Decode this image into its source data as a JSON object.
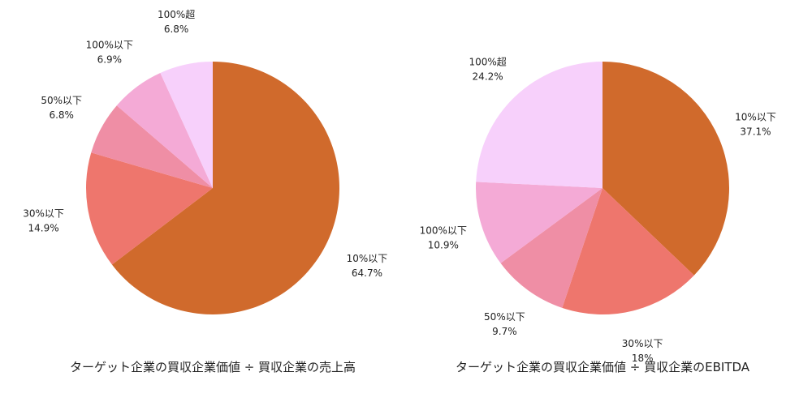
{
  "chart_data": [
    {
      "type": "pie",
      "title": "ターゲット企業の買収企業価値 ÷ 買収企業の売上高",
      "categories": [
        "10%以下",
        "30%以下",
        "50%以下",
        "100%以下",
        "100%超"
      ],
      "values": [
        64.7,
        14.9,
        6.8,
        6.9,
        6.8
      ],
      "value_labels": [
        "64.7%",
        "14.9%",
        "6.8%",
        "6.9%",
        "6.8%"
      ],
      "colors": [
        "#d06a2c",
        "#ee766d",
        "#ef8ea5",
        "#f4aad6",
        "#f7d0fb"
      ],
      "start": "12 o'clock",
      "direction": "clockwise",
      "legend": "none"
    },
    {
      "type": "pie",
      "title": "ターゲット企業の買収企業価値 ÷ 買収企業のEBITDA",
      "categories": [
        "10%以下",
        "30%以下",
        "50%以下",
        "100%以下",
        "100%超"
      ],
      "values": [
        37.1,
        18,
        9.7,
        10.9,
        24.2
      ],
      "value_labels": [
        "37.1%",
        "18%",
        "9.7%",
        "10.9%",
        "24.2%"
      ],
      "colors": [
        "#d06a2c",
        "#ee766d",
        "#ef8ea5",
        "#f4aad6",
        "#f7d0fb"
      ],
      "start": "12 o'clock",
      "direction": "clockwise",
      "legend": "none"
    }
  ]
}
